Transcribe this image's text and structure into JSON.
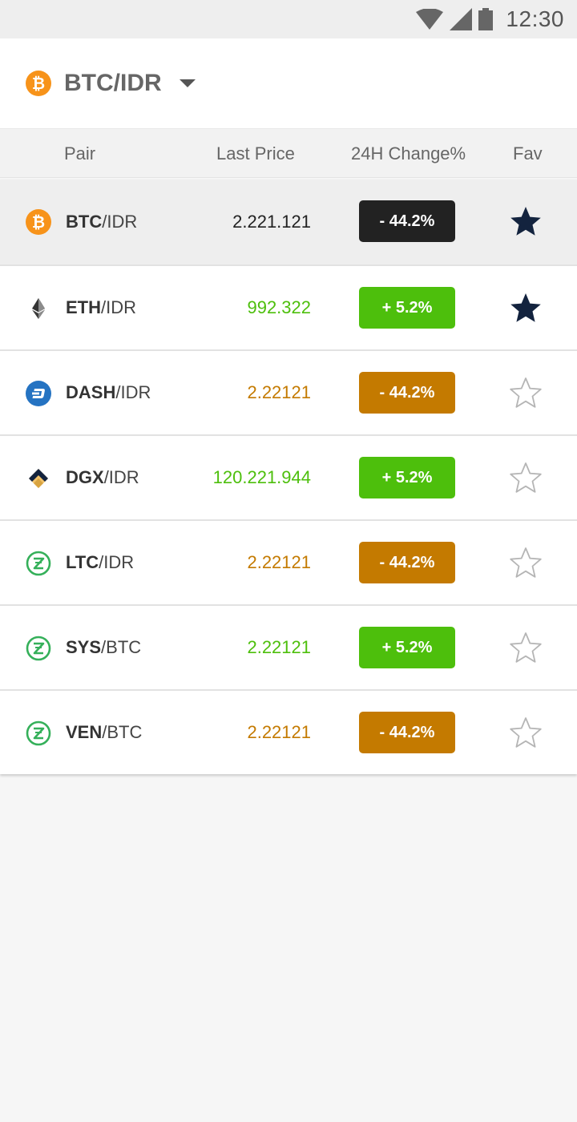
{
  "status_bar": {
    "time": "12:30"
  },
  "header": {
    "selected_pair": "BTC/IDR",
    "coin_icon": "bitcoin-icon"
  },
  "columns": {
    "pair": "Pair",
    "last_price": "Last Price",
    "change": "24H Change%",
    "fav": "Fav"
  },
  "colors": {
    "up": "#4dbf0c",
    "down": "#c47a00",
    "neutral": "#222222",
    "fav_filled": "#13233e"
  },
  "rows": [
    {
      "base": "BTC",
      "quote": "/IDR",
      "price": "2.221.121",
      "change": "- 44.2%",
      "trend": "neutral",
      "icon": "bitcoin-icon",
      "fav": true,
      "selected": true
    },
    {
      "base": "ETH",
      "quote": "/IDR",
      "price": "992.322",
      "change": "+ 5.2%",
      "trend": "up",
      "icon": "ethereum-icon",
      "fav": true,
      "selected": false
    },
    {
      "base": "DASH",
      "quote": "/IDR",
      "price": "2.22121",
      "change": "- 44.2%",
      "trend": "down",
      "icon": "dash-icon",
      "fav": false,
      "selected": false
    },
    {
      "base": "DGX",
      "quote": "/IDR",
      "price": "120.221.944",
      "change": "+ 5.2%",
      "trend": "up",
      "icon": "dgx-icon",
      "fav": false,
      "selected": false
    },
    {
      "base": "LTC",
      "quote": "/IDR",
      "price": "2.22121",
      "change": "- 44.2%",
      "trend": "down",
      "icon": "zcoin-icon",
      "fav": false,
      "selected": false
    },
    {
      "base": "SYS",
      "quote": "/BTC",
      "price": "2.22121",
      "change": "+ 5.2%",
      "trend": "up",
      "icon": "zcoin-icon",
      "fav": false,
      "selected": false
    },
    {
      "base": "VEN",
      "quote": "/BTC",
      "price": "2.22121",
      "change": "- 44.2%",
      "trend": "down",
      "icon": "zcoin-icon",
      "fav": false,
      "selected": false
    }
  ]
}
